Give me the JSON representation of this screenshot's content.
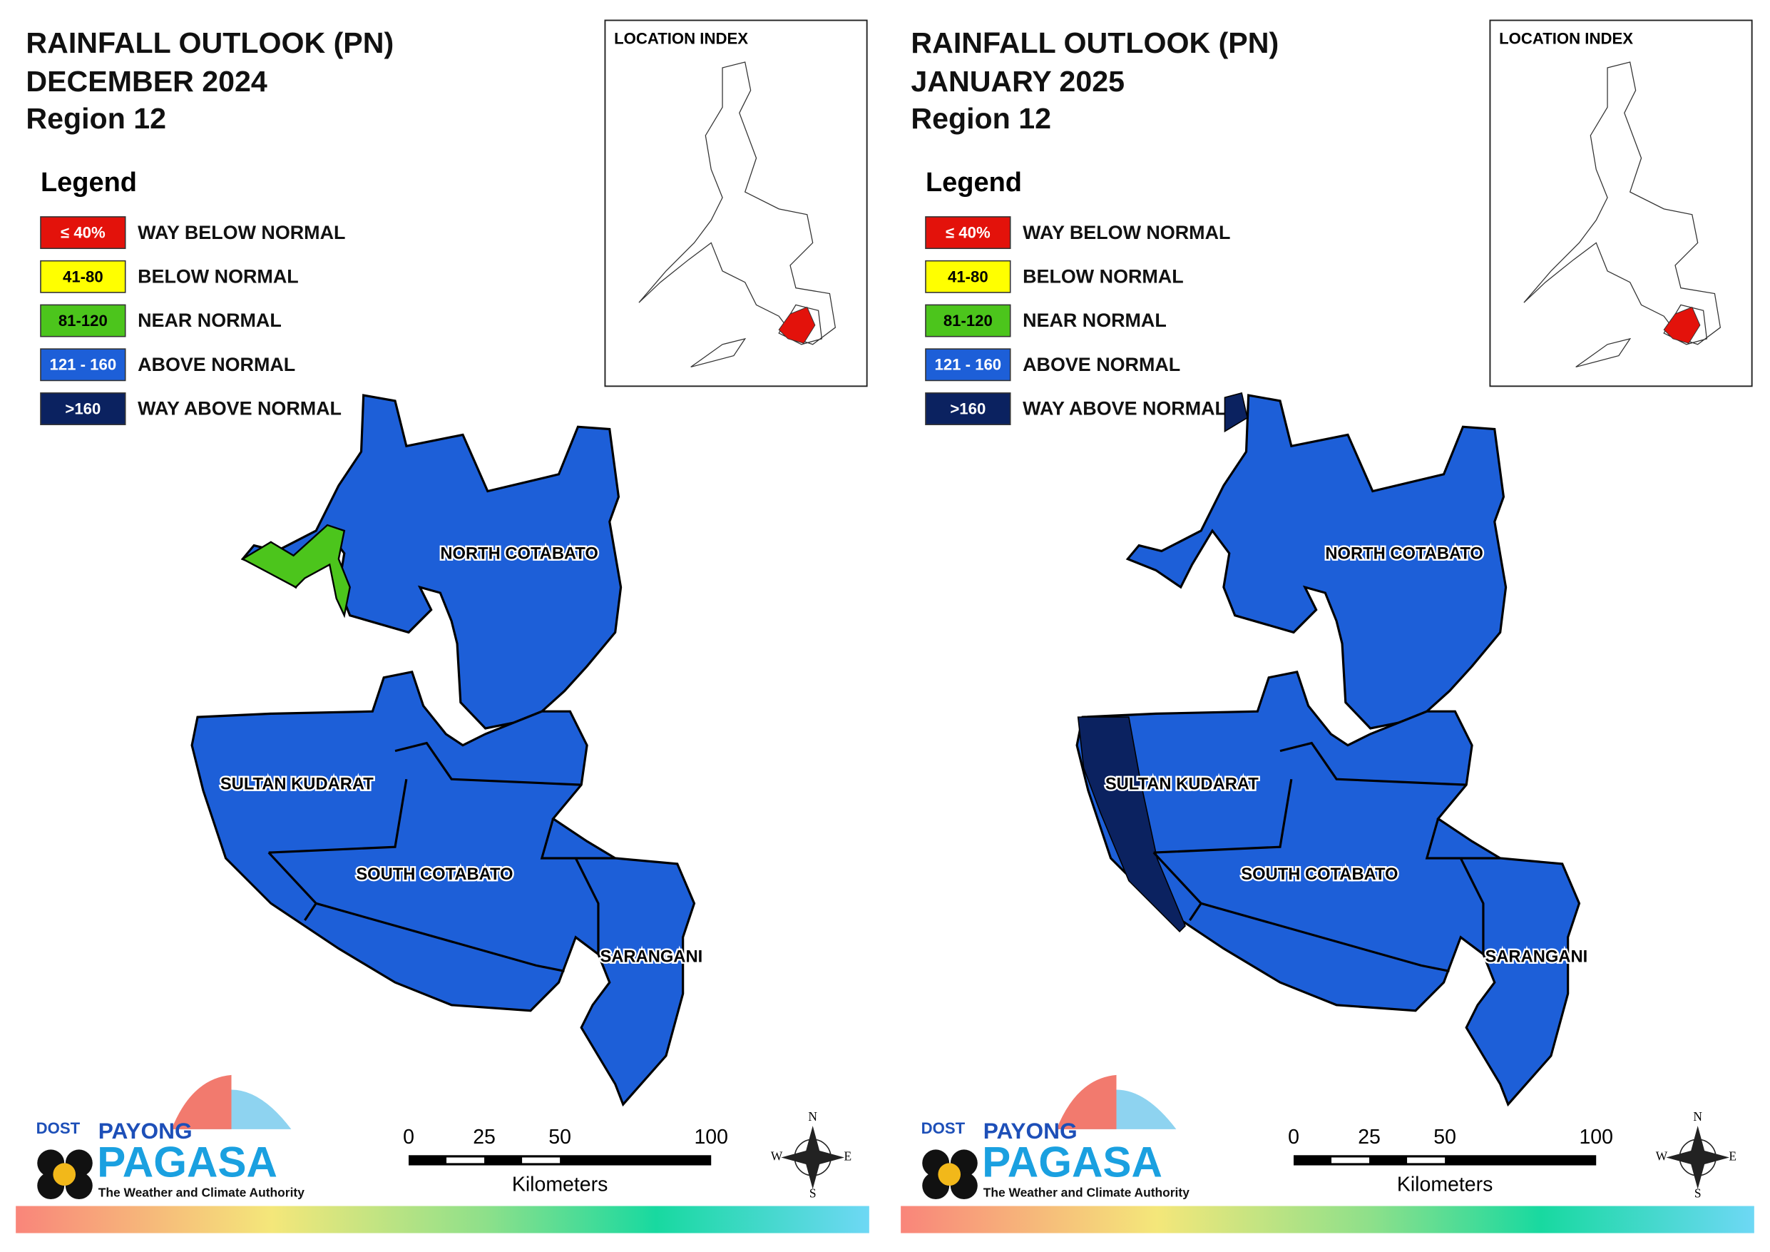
{
  "panels": [
    {
      "title": [
        "RAINFALL OUTLOOK (PN)",
        "DECEMBER 2024",
        "Region 12"
      ]
    },
    {
      "title": [
        "RAINFALL OUTLOOK (PN)",
        "JANUARY 2025",
        "Region 12"
      ]
    }
  ],
  "location_index": "LOCATION INDEX",
  "legend": {
    "title": "Legend",
    "items": [
      {
        "range": "≤ 40%",
        "label": "WAY BELOW NORMAL",
        "color": "#e3120b"
      },
      {
        "range": "41-80",
        "label": "BELOW NORMAL",
        "color": "#ffff00"
      },
      {
        "range": "81-120",
        "label": "NEAR NORMAL",
        "color": "#4cc51c"
      },
      {
        "range": "121 - 160",
        "label": "ABOVE NORMAL",
        "color": "#1d5fd8"
      },
      {
        "range": ">160",
        "label": "WAY ABOVE NORMAL",
        "color": "#0b2260"
      }
    ]
  },
  "provinces": [
    "NORTH COTABATO",
    "SULTAN KUDARAT",
    "SOUTH COTABATO",
    "SARANGANI"
  ],
  "scale_bar": {
    "ticks": [
      0,
      25,
      50,
      100
    ],
    "unit": "Kilometers"
  },
  "compass": [
    "N",
    "E",
    "S",
    "W"
  ],
  "logo": {
    "agency": "DOST",
    "line1": "PAYONG",
    "line2": "PAGASA",
    "tagline": "The Weather and Climate Authority"
  }
}
